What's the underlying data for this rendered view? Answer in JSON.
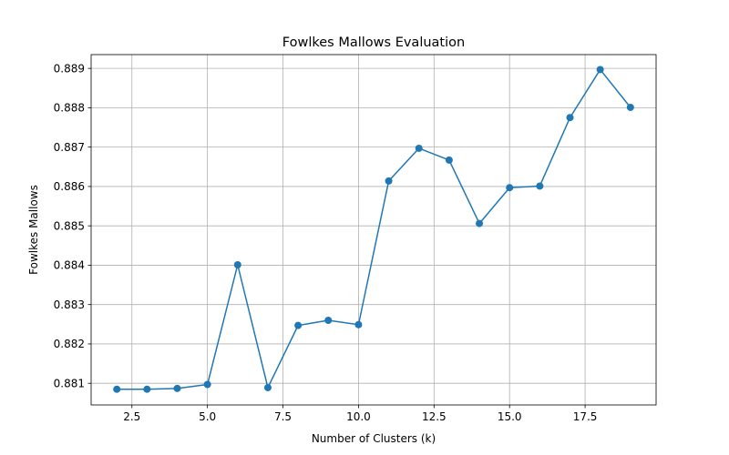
{
  "chart_data": {
    "type": "line",
    "title": "Fowlkes Mallows Evaluation",
    "xlabel": "Number of Clusters (k)",
    "ylabel": "Fowlkes Mallows",
    "xlim": [
      1.15,
      19.85
    ],
    "ylim": [
      0.88045,
      0.88935
    ],
    "x_ticks": [
      2.5,
      5.0,
      7.5,
      10.0,
      12.5,
      15.0,
      17.5
    ],
    "x_tick_labels": [
      "2.5",
      "5.0",
      "7.5",
      "10.0",
      "12.5",
      "15.0",
      "17.5"
    ],
    "y_ticks": [
      0.881,
      0.882,
      0.883,
      0.884,
      0.885,
      0.886,
      0.887,
      0.888,
      0.889
    ],
    "y_tick_labels": [
      "0.881",
      "0.882",
      "0.883",
      "0.884",
      "0.885",
      "0.886",
      "0.887",
      "0.888",
      "0.889"
    ],
    "grid": true,
    "series": [
      {
        "color": "#1f77b4",
        "marker": "circle",
        "x": [
          2,
          3,
          4,
          5,
          6,
          7,
          8,
          9,
          10,
          11,
          12,
          13,
          14,
          15,
          16,
          17,
          18,
          19
        ],
        "y": [
          0.88085,
          0.88085,
          0.88087,
          0.88097,
          0.88401,
          0.88089,
          0.88247,
          0.8826,
          0.88249,
          0.88614,
          0.88697,
          0.88667,
          0.88506,
          0.88597,
          0.88601,
          0.88775,
          0.88897,
          0.88801
        ]
      }
    ]
  }
}
